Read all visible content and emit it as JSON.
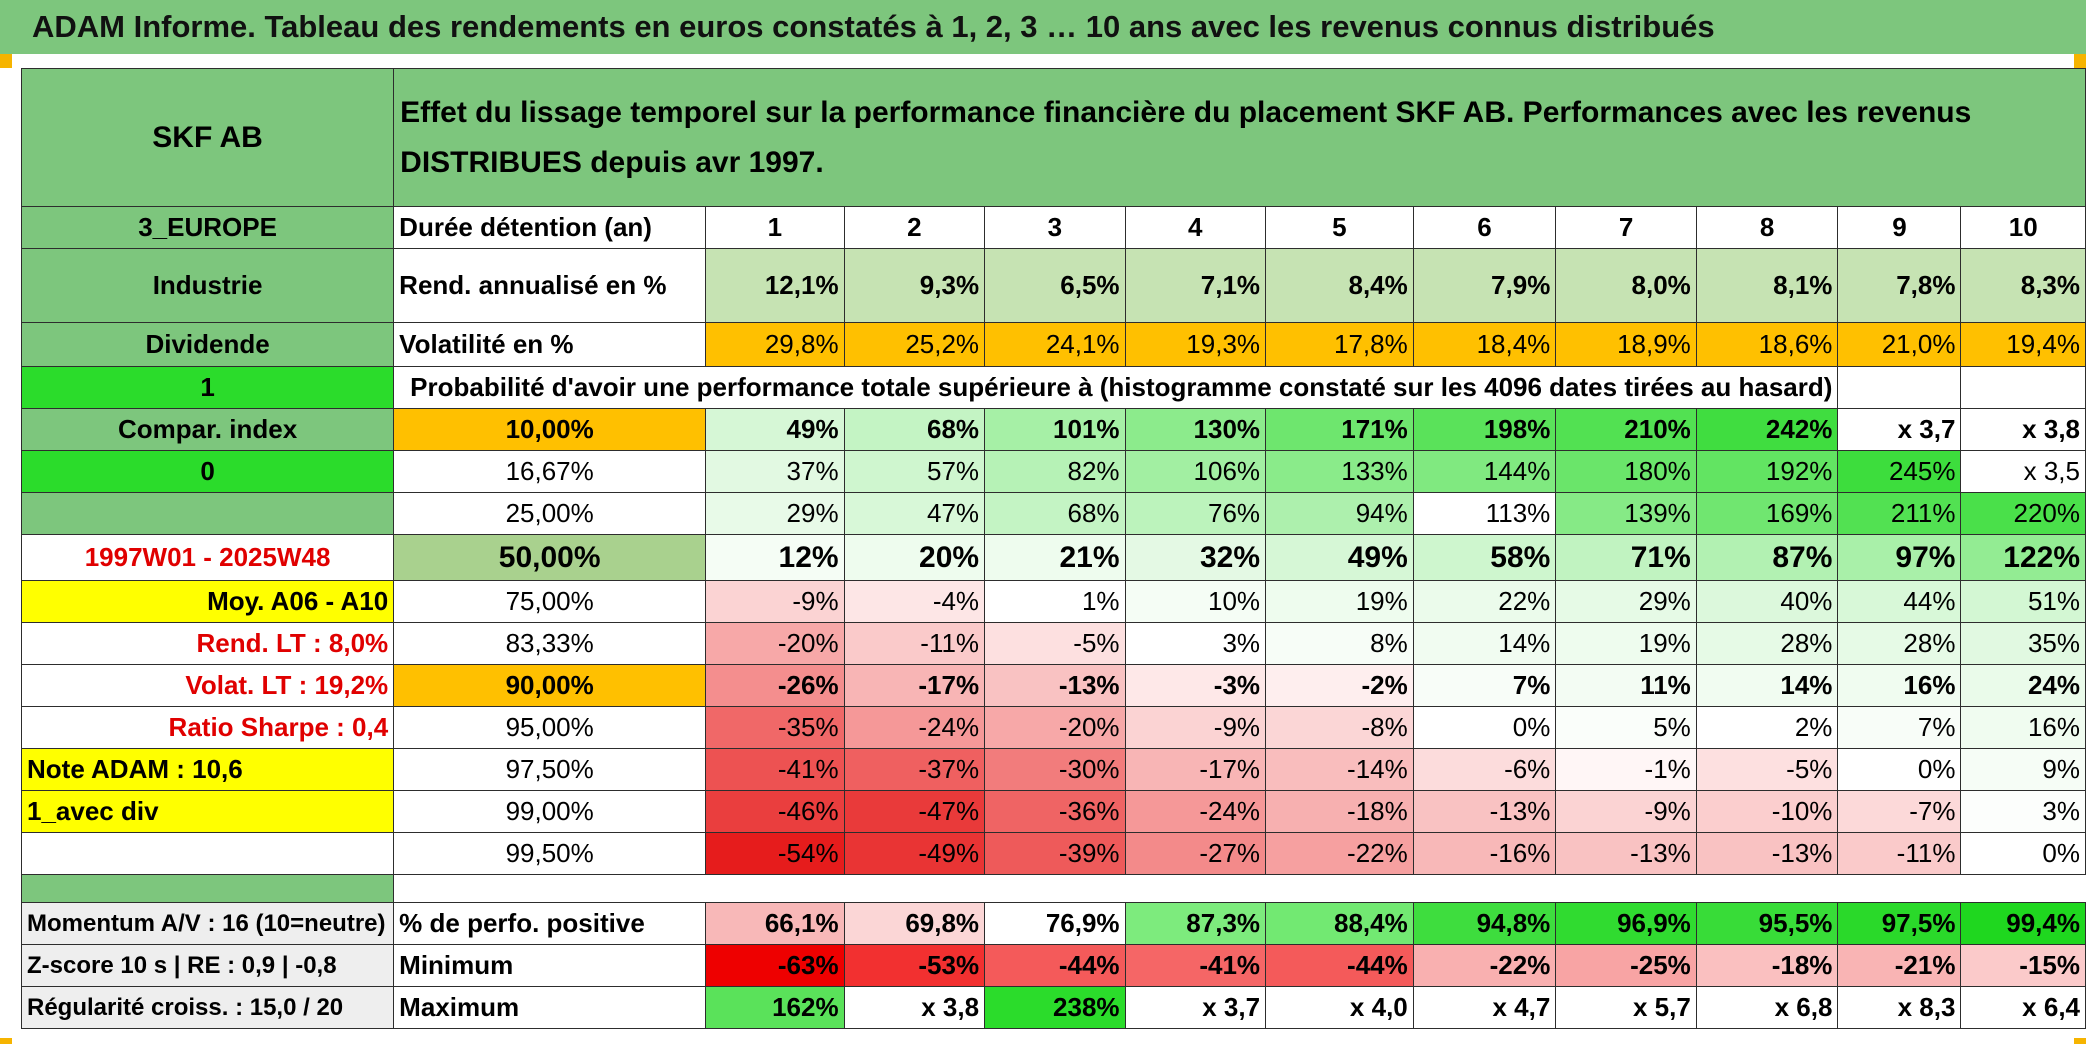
{
  "title": "ADAM Informe. Tableau des rendements en euros constatés à 1, 2, 3 … 10 ans avec les revenus connus distribués",
  "header": {
    "stock": "SKF AB",
    "description": "Effet du lissage temporel sur la performance financière du placement SKF AB. Performances avec les revenus DISTRIBUES depuis avr 1997."
  },
  "left": {
    "region": "3_EUROPE",
    "sector": "Industrie",
    "type": "Dividende",
    "flag1": "1",
    "compar": "Compar. index",
    "flag0": "0",
    "period": "1997W01 - 2025W48",
    "moy": "Moy. A06 - A10",
    "rend_lt": "Rend. LT :   8,0%",
    "volat_lt": "Volat. LT :   19,2%",
    "sharpe": "Ratio Sharpe :   0,4",
    "note": "Note ADAM : 10,6",
    "div": "1_avec div"
  },
  "labels": {
    "duree": "Durée détention (an)",
    "rend": "Rend. annualisé en %",
    "vol": "Volatilité en %",
    "proba": "Probabilité d'avoir une performance totale supérieure à (histogramme constaté sur les 4096 dates tirées au hasard)"
  },
  "years": [
    "1",
    "2",
    "3",
    "4",
    "5",
    "6",
    "7",
    "8",
    "9",
    "10"
  ],
  "rend": [
    "12,1%",
    "9,3%",
    "6,5%",
    "7,1%",
    "8,4%",
    "7,9%",
    "8,0%",
    "8,1%",
    "7,8%",
    "8,3%"
  ],
  "vol": [
    "29,8%",
    "25,2%",
    "24,1%",
    "19,3%",
    "17,8%",
    "18,4%",
    "18,9%",
    "18,6%",
    "21,0%",
    "19,4%"
  ],
  "colors": {
    "green_header": "#7dc67d",
    "pale_green": "#c6e3b3",
    "orange": "#ffc000",
    "bright_green": "#2bdc2b",
    "yellow": "#ffff00",
    "red_text": "#e00000"
  },
  "prob_rows": [
    {
      "label": "10,00%",
      "cells": [
        "49%",
        "68%",
        "101%",
        "130%",
        "171%",
        "198%",
        "210%",
        "242%",
        "x 3,7",
        "x 3,8"
      ],
      "bg": [
        "#d6f7d6",
        "#c4f4c4",
        "#a6f0a6",
        "#8ceb8c",
        "#6ee66e",
        "#5ae25a",
        "#52e152",
        "#40dd40",
        "#ffffff",
        "#ffffff"
      ]
    },
    {
      "label": "16,67%",
      "cells": [
        "37%",
        "57%",
        "82%",
        "106%",
        "133%",
        "144%",
        "180%",
        "192%",
        "245%",
        "x 3,5"
      ],
      "bg": [
        "#e2f9e2",
        "#cff6cf",
        "#b6f2b6",
        "#a2efa2",
        "#8aeb8a",
        "#80e980",
        "#6ae56a",
        "#62e462",
        "#3ddd3d",
        "#ffffff"
      ]
    },
    {
      "label": "25,00%",
      "cells": [
        "29%",
        "47%",
        "68%",
        "76%",
        "94%",
        "113%",
        "139%",
        "169%",
        "211%",
        "220%"
      ],
      "bg": [
        "#e8fae8",
        "#d8f8d8",
        "#c4f4c4",
        "#bcf3bc",
        "#adf0ad",
        "#9ceee9c",
        "#86ea86",
        "#70e670",
        "#52e152",
        "#4ae04a"
      ]
    },
    {
      "label": "50,00%",
      "cells": [
        "12%",
        "20%",
        "21%",
        "32%",
        "49%",
        "58%",
        "71%",
        "87%",
        "97%",
        "122%"
      ],
      "bg": [
        "#f5fdf5",
        "#eefcee",
        "#eefcee",
        "#e4f9e4",
        "#d6f7d6",
        "#cef6ce",
        "#c1f3c1",
        "#b2f1b2",
        "#a9f0a9",
        "#93ec93"
      ]
    },
    {
      "label": "75,00%",
      "cells": [
        "-9%",
        "-4%",
        "1%",
        "10%",
        "19%",
        "22%",
        "29%",
        "40%",
        "44%",
        "51%"
      ],
      "bg": [
        "#fbd3d3",
        "#fde6e6",
        "#ffffff",
        "#f5fdf5",
        "#eefcee",
        "#ebfbeb",
        "#e6fae6",
        "#dcf8dc",
        "#d8f8d8",
        "#d3f7d3"
      ]
    },
    {
      "label": "83,33%",
      "cells": [
        "-20%",
        "-11%",
        "-5%",
        "3%",
        "8%",
        "14%",
        "19%",
        "28%",
        "28%",
        "35%"
      ],
      "bg": [
        "#f7a8a8",
        "#facaca",
        "#fde0e0",
        "#ffffff",
        "#f7fdf7",
        "#f1fcf1",
        "#eefcee",
        "#e6fae6",
        "#e6fae6",
        "#e1f9e1"
      ]
    },
    {
      "label": "90,00%",
      "cells": [
        "-26%",
        "-17%",
        "-13%",
        "-3%",
        "-2%",
        "7%",
        "11%",
        "14%",
        "16%",
        "24%"
      ],
      "bg": [
        "#f48e8e",
        "#f8b5b5",
        "#f9c2c2",
        "#fee8e8",
        "#feeeee",
        "#f8fdf8",
        "#f3fcf3",
        "#f1fcf1",
        "#f0fcf0",
        "#eafbea"
      ]
    },
    {
      "label": "95,00%",
      "cells": [
        "-35%",
        "-24%",
        "-20%",
        "-9%",
        "-8%",
        "0%",
        "5%",
        "2%",
        "7%",
        "16%"
      ],
      "bg": [
        "#f06868",
        "#f59898",
        "#f7a8a8",
        "#fbd3d3",
        "#fbd6d6",
        "#ffffff",
        "#fafefa",
        "#ffffff",
        "#f8fdf8",
        "#f0fcf0"
      ]
    },
    {
      "label": "97,50%",
      "cells": [
        "-41%",
        "-37%",
        "-30%",
        "-17%",
        "-14%",
        "-6%",
        "-1%",
        "-5%",
        "0%",
        "9%"
      ],
      "bg": [
        "#ed5252",
        "#ef6060",
        "#f27c7c",
        "#f8b5b5",
        "#f9bdbd",
        "#fcdcdc",
        "#fff6f6",
        "#fde0e0",
        "#ffffff",
        "#f6fdf6"
      ]
    },
    {
      "label": "99,00%",
      "cells": [
        "-46%",
        "-47%",
        "-36%",
        "-24%",
        "-18%",
        "-13%",
        "-9%",
        "-10%",
        "-7%",
        "3%"
      ],
      "bg": [
        "#ea3e3e",
        "#e93a3a",
        "#ef6464",
        "#f59898",
        "#f7b0b0",
        "#f9c2c2",
        "#fbd3d3",
        "#fbcece",
        "#fcd9d9",
        "#fcfefc"
      ]
    },
    {
      "label": "99,50%",
      "cells": [
        "-54%",
        "-49%",
        "-39%",
        "-27%",
        "-22%",
        "-16%",
        "-13%",
        "-13%",
        "-11%",
        "0%"
      ],
      "bg": [
        "#e61c1c",
        "#e93434",
        "#ee5a5a",
        "#f38a8a",
        "#f6a0a0",
        "#f8b8b8",
        "#f9c2c2",
        "#f9c2c2",
        "#facaca",
        "#ffffff"
      ]
    }
  ],
  "bottom": {
    "momentum": "Momentum A/V : 16 (10=neutre)",
    "zscore": "Z-score 10 s | RE : 0,9 | -0,8",
    "regul": "Régularité croiss. : 15,0 / 20",
    "positive_label": "% de perfo. positive",
    "min_label": "Minimum",
    "max_label": "Maximum",
    "positive": [
      "66,1%",
      "69,8%",
      "76,9%",
      "87,3%",
      "88,4%",
      "94,8%",
      "96,9%",
      "95,5%",
      "97,5%",
      "99,4%"
    ],
    "positive_bg": [
      "#f8b8b8",
      "#fbd6d6",
      "#ffffff",
      "#7deb7d",
      "#72e972",
      "#3edd3e",
      "#30db30",
      "#38dc38",
      "#2ad92a",
      "#1fd71f"
    ],
    "minimum": [
      "-63%",
      "-53%",
      "-44%",
      "-41%",
      "-44%",
      "-22%",
      "-25%",
      "-18%",
      "-21%",
      "-15%"
    ],
    "minimum_bg": [
      "#ee0000",
      "#f23030",
      "#f45a5a",
      "#f56666",
      "#f45a5a",
      "#f9b0b0",
      "#f8a4a4",
      "#fac0c0",
      "#f9b4b4",
      "#fbcaca"
    ],
    "maximum": [
      "162%",
      "x 3,8",
      "238%",
      "x 3,7",
      "x 4,0",
      "x 4,7",
      "x 5,7",
      "x 6,8",
      "x 8,3",
      "x 6,4"
    ],
    "maximum_bg": [
      "#5ae25a",
      "#ffffff",
      "#2bdc2b",
      "#ffffff",
      "#ffffff",
      "#ffffff",
      "#ffffff",
      "#ffffff",
      "#ffffff",
      "#ffffff"
    ]
  }
}
